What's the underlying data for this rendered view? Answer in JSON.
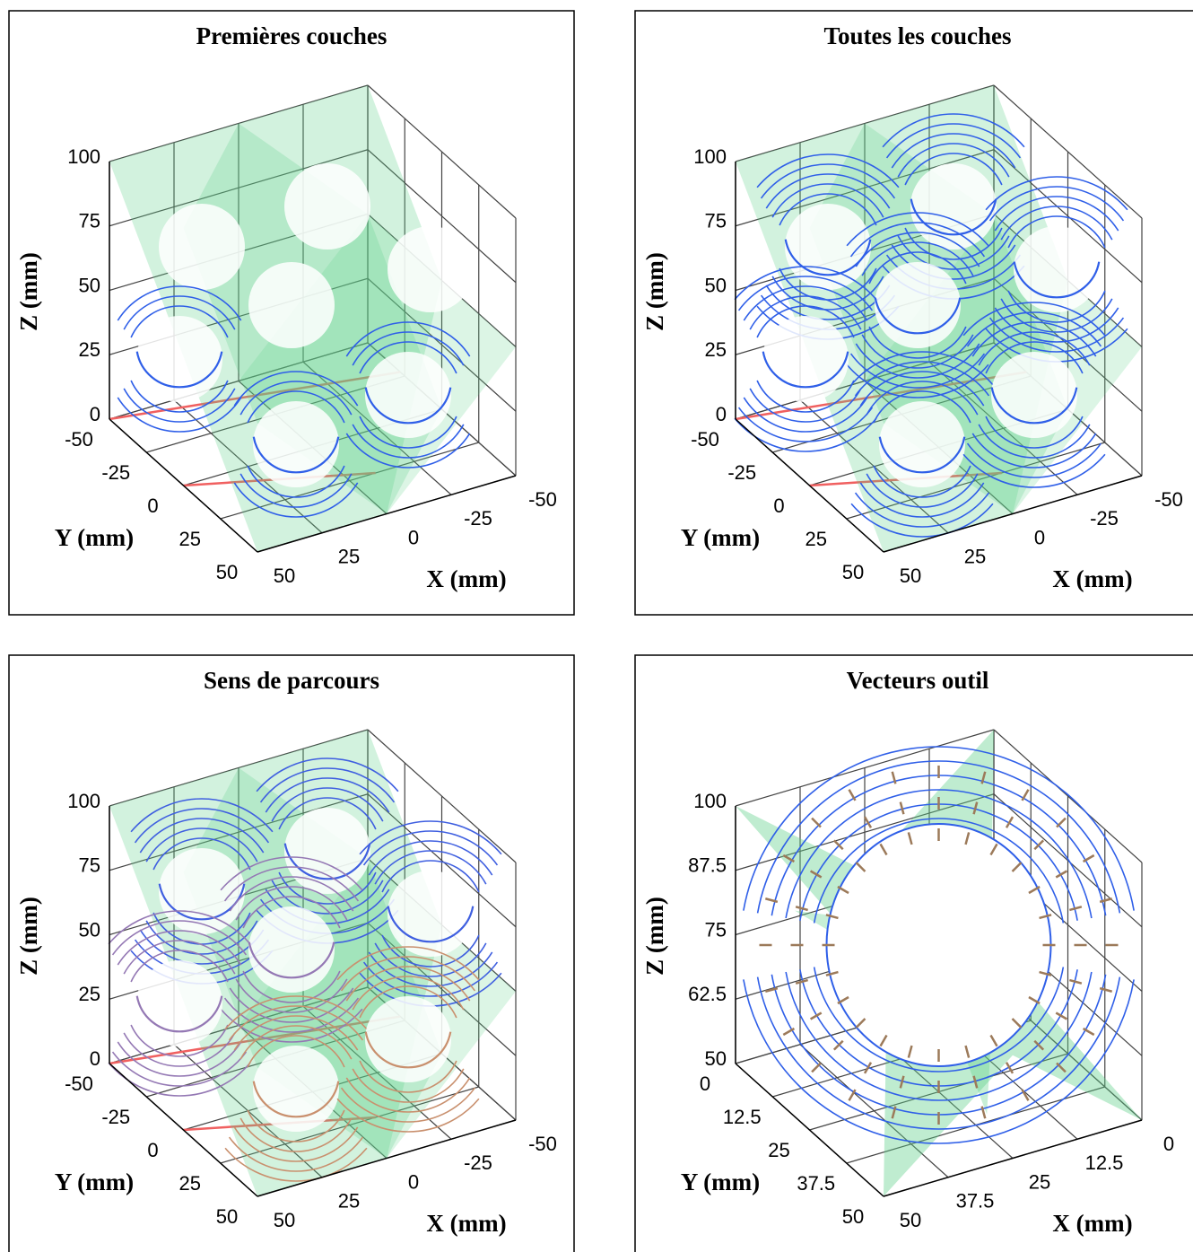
{
  "panels": [
    {
      "title": "Premières couches",
      "x_label": "X (mm)",
      "y_label": "Y (mm)",
      "z_label": "Z (mm)",
      "xticks": [
        -50,
        -25,
        0,
        25,
        50
      ],
      "yticks": [
        -50,
        -25,
        0,
        25,
        50
      ],
      "zticks": [
        0,
        25,
        50,
        75,
        100
      ]
    },
    {
      "title": "Toutes les couches",
      "x_label": "X (mm)",
      "y_label": "Y (mm)",
      "z_label": "Z (mm)",
      "xticks": [
        -50,
        -25,
        0,
        25,
        50
      ],
      "yticks": [
        -50,
        -25,
        0,
        25,
        50
      ],
      "zticks": [
        0,
        25,
        50,
        75,
        100
      ]
    },
    {
      "title": "Sens de parcours",
      "x_label": "X (mm)",
      "y_label": "Y (mm)",
      "z_label": "Z (mm)",
      "xticks": [
        -50,
        -25,
        0,
        25,
        50
      ],
      "yticks": [
        -50,
        -25,
        0,
        25,
        50
      ],
      "zticks": [
        0,
        25,
        50,
        75,
        100
      ]
    },
    {
      "title": "Vecteurs outil",
      "x_label": "X (mm)",
      "y_label": "Y (mm)",
      "z_label": "Z (mm)",
      "xticks": [
        0,
        12.5,
        25,
        37.5,
        50
      ],
      "yticks": [
        0,
        12.5,
        25,
        37.5,
        50
      ],
      "zticks": [
        50,
        62.5,
        75,
        87.5,
        100
      ]
    }
  ]
}
